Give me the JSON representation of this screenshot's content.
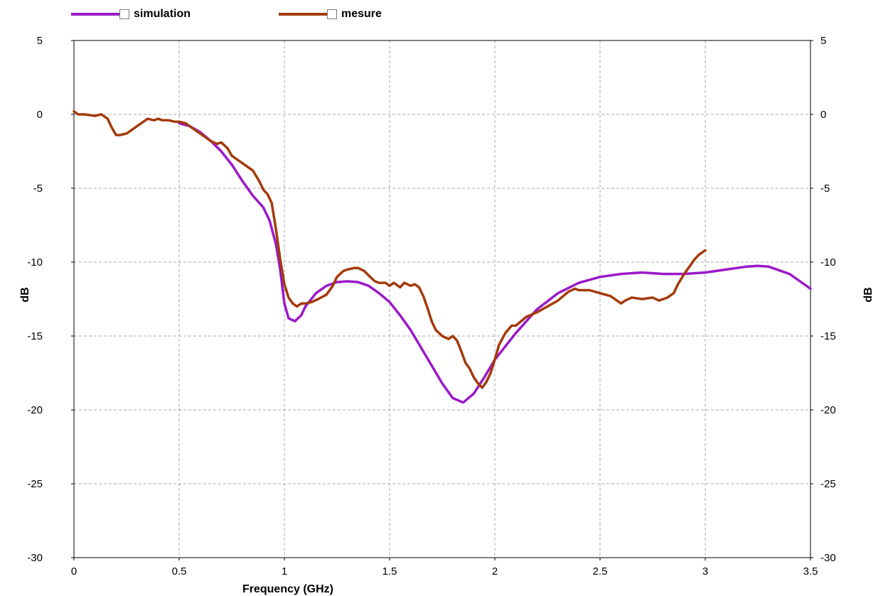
{
  "legend": {
    "items": [
      {
        "label": "simulation",
        "color": "#9b19c9"
      },
      {
        "label": "mesure",
        "color": "#a33a0b"
      }
    ]
  },
  "chart_data": {
    "type": "line",
    "xlabel": "Frequency (GHz)",
    "ylabel": "dB",
    "ylabel_right": "dB",
    "xlim": [
      0,
      3.5
    ],
    "ylim": [
      -30,
      5
    ],
    "x_ticks": [
      "0",
      "0.5",
      "1",
      "1.5",
      "2",
      "2.5",
      "3",
      "3.5"
    ],
    "y_ticks": [
      "5",
      "0",
      "-5",
      "-10",
      "-15",
      "-20",
      "-25",
      "-30"
    ],
    "grid": true,
    "legend_position": "top-left",
    "series": [
      {
        "name": "simulation",
        "color": "#9b19c9",
        "x": [
          0.5,
          0.55,
          0.6,
          0.65,
          0.7,
          0.75,
          0.8,
          0.85,
          0.9,
          0.93,
          0.96,
          0.98,
          1.0,
          1.02,
          1.05,
          1.08,
          1.1,
          1.15,
          1.2,
          1.25,
          1.3,
          1.35,
          1.4,
          1.45,
          1.5,
          1.55,
          1.6,
          1.65,
          1.7,
          1.75,
          1.8,
          1.85,
          1.9,
          1.95,
          2.0,
          2.1,
          2.2,
          2.3,
          2.4,
          2.5,
          2.6,
          2.7,
          2.8,
          2.9,
          3.0,
          3.1,
          3.2,
          3.25,
          3.3,
          3.4,
          3.45,
          3.5
        ],
        "y": [
          -0.6,
          -0.8,
          -1.2,
          -1.8,
          -2.5,
          -3.4,
          -4.5,
          -5.5,
          -6.3,
          -7.2,
          -8.8,
          -10.5,
          -12.8,
          -13.8,
          -14.0,
          -13.6,
          -13.0,
          -12.1,
          -11.6,
          -11.35,
          -11.3,
          -11.35,
          -11.6,
          -12.1,
          -12.7,
          -13.6,
          -14.6,
          -15.8,
          -17.0,
          -18.2,
          -19.2,
          -19.5,
          -18.9,
          -17.8,
          -16.6,
          -14.8,
          -13.2,
          -12.1,
          -11.4,
          -11.0,
          -10.8,
          -10.7,
          -10.8,
          -10.8,
          -10.7,
          -10.5,
          -10.3,
          -10.25,
          -10.3,
          -10.8,
          -11.3,
          -11.8
        ]
      },
      {
        "name": "mesure",
        "color": "#a33a0b",
        "x": [
          0,
          0.02,
          0.05,
          0.1,
          0.13,
          0.16,
          0.18,
          0.2,
          0.22,
          0.25,
          0.28,
          0.3,
          0.32,
          0.35,
          0.38,
          0.4,
          0.42,
          0.45,
          0.48,
          0.5,
          0.53,
          0.55,
          0.58,
          0.6,
          0.62,
          0.65,
          0.68,
          0.7,
          0.73,
          0.75,
          0.78,
          0.8,
          0.83,
          0.85,
          0.88,
          0.9,
          0.92,
          0.94,
          0.96,
          0.98,
          1.0,
          1.02,
          1.04,
          1.06,
          1.08,
          1.1,
          1.13,
          1.16,
          1.2,
          1.23,
          1.25,
          1.28,
          1.3,
          1.33,
          1.35,
          1.38,
          1.4,
          1.43,
          1.45,
          1.48,
          1.5,
          1.52,
          1.55,
          1.57,
          1.6,
          1.62,
          1.64,
          1.66,
          1.68,
          1.7,
          1.72,
          1.75,
          1.78,
          1.8,
          1.82,
          1.84,
          1.86,
          1.88,
          1.9,
          1.92,
          1.94,
          1.96,
          1.98,
          2.0,
          2.02,
          2.05,
          2.08,
          2.1,
          2.15,
          2.2,
          2.25,
          2.3,
          2.35,
          2.38,
          2.4,
          2.45,
          2.5,
          2.55,
          2.58,
          2.6,
          2.62,
          2.65,
          2.7,
          2.75,
          2.78,
          2.8,
          2.82,
          2.85,
          2.87,
          2.9,
          2.93,
          2.95,
          2.97,
          3.0
        ],
        "y": [
          0.2,
          0.0,
          0.0,
          -0.1,
          0.0,
          -0.3,
          -0.9,
          -1.4,
          -1.4,
          -1.3,
          -1.0,
          -0.8,
          -0.6,
          -0.3,
          -0.4,
          -0.3,
          -0.4,
          -0.4,
          -0.5,
          -0.5,
          -0.6,
          -0.8,
          -1.1,
          -1.3,
          -1.5,
          -1.8,
          -2.0,
          -1.9,
          -2.3,
          -2.8,
          -3.1,
          -3.3,
          -3.6,
          -3.8,
          -4.5,
          -5.1,
          -5.4,
          -6.0,
          -7.8,
          -9.8,
          -11.5,
          -12.4,
          -12.8,
          -13.0,
          -12.8,
          -12.8,
          -12.7,
          -12.5,
          -12.2,
          -11.6,
          -11.0,
          -10.6,
          -10.5,
          -10.4,
          -10.4,
          -10.6,
          -10.9,
          -11.3,
          -11.4,
          -11.4,
          -11.6,
          -11.4,
          -11.7,
          -11.4,
          -11.6,
          -11.5,
          -11.7,
          -12.3,
          -13.1,
          -14.0,
          -14.6,
          -15.0,
          -15.2,
          -15.0,
          -15.3,
          -16.0,
          -16.8,
          -17.2,
          -17.8,
          -18.2,
          -18.5,
          -18.1,
          -17.5,
          -16.6,
          -15.6,
          -14.8,
          -14.3,
          -14.3,
          -13.7,
          -13.4,
          -13.0,
          -12.6,
          -12.0,
          -11.8,
          -11.9,
          -11.9,
          -12.1,
          -12.3,
          -12.6,
          -12.8,
          -12.6,
          -12.4,
          -12.5,
          -12.4,
          -12.6,
          -12.5,
          -12.4,
          -12.1,
          -11.5,
          -10.8,
          -10.2,
          -9.8,
          -9.5,
          -9.2
        ]
      }
    ]
  }
}
